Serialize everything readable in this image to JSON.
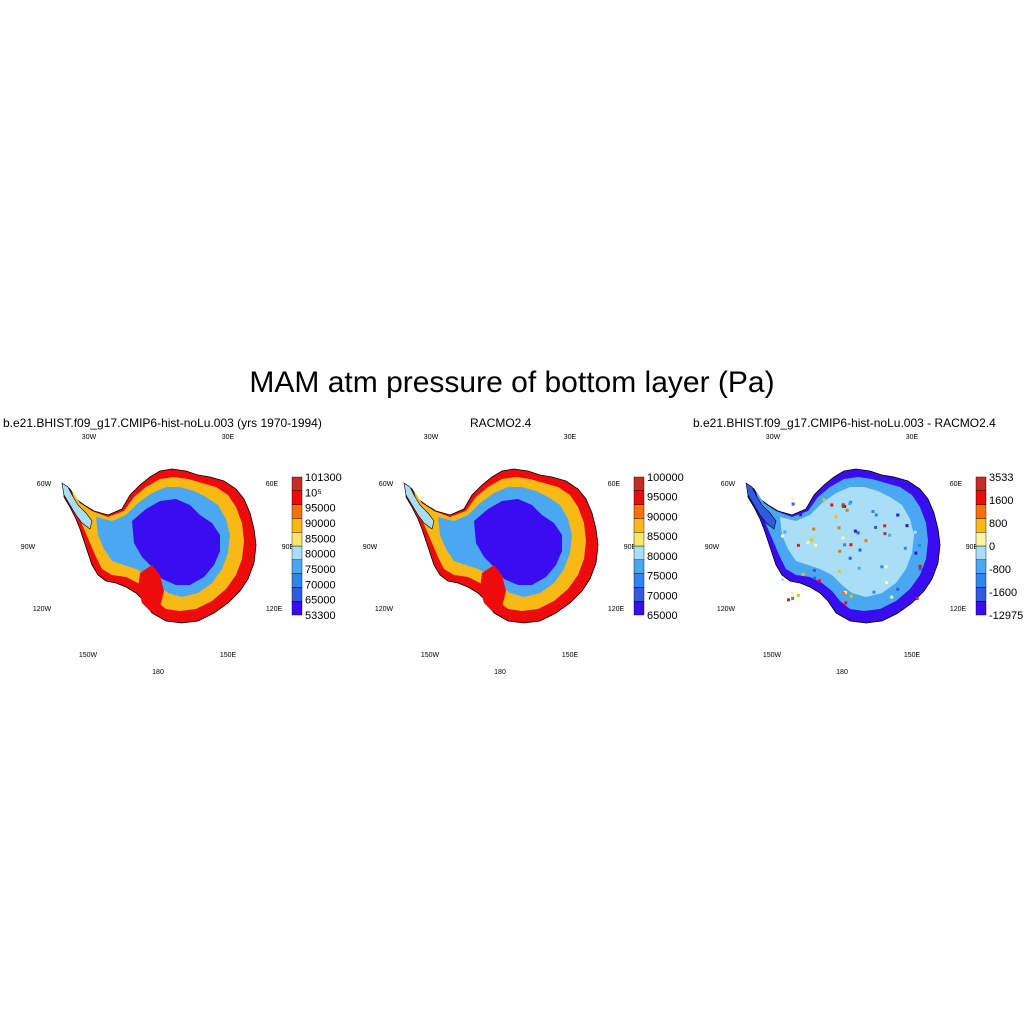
{
  "figure": {
    "title": "MAM atm pressure of bottom layer (Pa)"
  },
  "panels": [
    {
      "title": "b.e21.BHIST.f09_g17.CMIP6-hist-noLu.003 (yrs 1970-1994)",
      "colorbar": {
        "colors": [
          "#3a0df0",
          "#2f5be0",
          "#2f86ee",
          "#4aa8f0",
          "#a9def7",
          "#fde46a",
          "#f9b915",
          "#f5720a",
          "#ee0b0b",
          "#c82a25"
        ],
        "labels": [
          "53300",
          "65000",
          "70000",
          "75000",
          "80000",
          "85000",
          "90000",
          "95000",
          "10⁵",
          "101300"
        ]
      }
    },
    {
      "title": "RACMO2.4",
      "colorbar": {
        "colors": [
          "#3a0df0",
          "#2f5be0",
          "#2f86ee",
          "#4aa8f0",
          "#a9def7",
          "#fde46a",
          "#f9b915",
          "#f5720a",
          "#ee0b0b",
          "#c82a25"
        ],
        "labels": [
          "65000",
          "70000",
          "75000",
          "80000",
          "85000",
          "90000",
          "95000",
          "100000"
        ]
      }
    },
    {
      "title": "b.e21.BHIST.f09_g17.CMIP6-hist-noLu.003 - RACMO2.4",
      "colorbar": {
        "colors": [
          "#3a0df0",
          "#2f5be0",
          "#2f86ee",
          "#4aa8f0",
          "#a9def7",
          "#fdf6a6",
          "#f9b915",
          "#f5720a",
          "#ee0b0b",
          "#c82a25"
        ],
        "labels": [
          "-12975",
          "-1600",
          "-800",
          "0",
          "800",
          "1600",
          "3533"
        ]
      }
    }
  ],
  "longitude_labels": [
    "30W",
    "30E",
    "60W",
    "60E",
    "90W",
    "90E",
    "120W",
    "120E",
    "150W",
    "150E",
    "180"
  ]
}
